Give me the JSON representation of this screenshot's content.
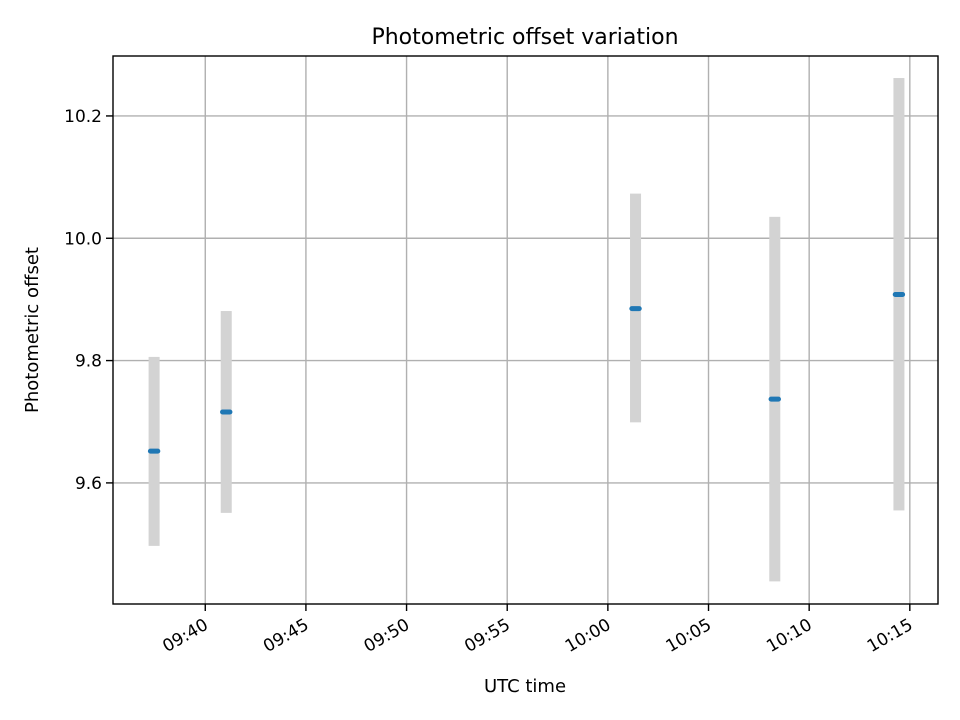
{
  "chart_data": {
    "type": "scatter",
    "title": "Photometric offset variation",
    "xlabel": "UTC time",
    "ylabel": "Photometric offset",
    "x_axis_kind": "time",
    "xlim": [
      "09:35:25",
      "10:16:24"
    ],
    "ylim": [
      9.402,
      10.298
    ],
    "xticks": [
      "09:40",
      "09:45",
      "09:50",
      "09:55",
      "10:00",
      "10:05",
      "10:10",
      "10:15"
    ],
    "yticks": [
      9.6,
      9.8,
      10.0,
      10.2
    ],
    "grid": true,
    "colors": {
      "points": "#1f77b4",
      "error_bars": "#d3d3d3"
    },
    "points": [
      {
        "t_start": "09:37:15",
        "t_end": "09:37:40",
        "y": 9.652,
        "y_low": 9.497,
        "y_high": 9.806
      },
      {
        "t_start": "09:40:50",
        "t_end": "09:41:15",
        "y": 9.716,
        "y_low": 9.551,
        "y_high": 9.881
      },
      {
        "t_start": "10:01:10",
        "t_end": "10:01:35",
        "y": 9.885,
        "y_low": 9.699,
        "y_high": 10.073
      },
      {
        "t_start": "10:08:05",
        "t_end": "10:08:30",
        "y": 9.737,
        "y_low": 9.439,
        "y_high": 10.035
      },
      {
        "t_start": "10:14:15",
        "t_end": "10:14:40",
        "y": 9.908,
        "y_low": 9.555,
        "y_high": 10.262
      }
    ]
  }
}
